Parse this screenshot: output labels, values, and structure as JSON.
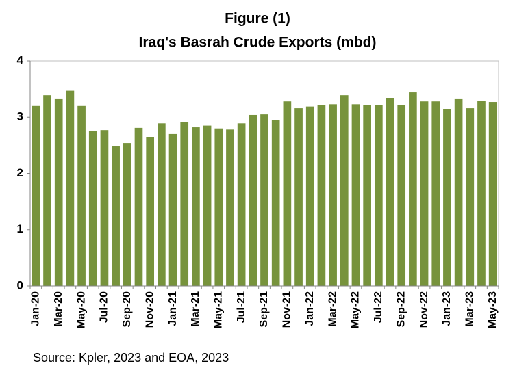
{
  "chart_data": {
    "type": "bar",
    "title": "Figure (1)",
    "subtitle": "Iraq's Basrah Crude Exports (mbd)",
    "source": "Source: Kpler, 2023 and EOA, 2023",
    "categories": [
      "Jan-20",
      null,
      "Mar-20",
      null,
      "May-20",
      null,
      "Jul-20",
      null,
      "Sep-20",
      null,
      "Nov-20",
      null,
      "Jan-21",
      null,
      "Mar-21",
      null,
      "May-21",
      null,
      "Jul-21",
      null,
      "Sep-21",
      null,
      "Nov-21",
      null,
      "Jan-22",
      null,
      "Mar-22",
      null,
      "May-22",
      null,
      "Jul-22",
      null,
      "Sep-22",
      null,
      "Nov-22",
      null,
      "Jan-23",
      null,
      "Mar-23",
      null,
      "May-23"
    ],
    "values": [
      3.2,
      3.39,
      3.32,
      3.47,
      3.2,
      2.76,
      2.77,
      2.48,
      2.54,
      2.81,
      2.65,
      2.89,
      2.7,
      2.91,
      2.82,
      2.85,
      2.8,
      2.78,
      2.89,
      3.04,
      3.05,
      2.95,
      3.28,
      3.16,
      3.19,
      3.22,
      3.23,
      3.39,
      3.23,
      3.22,
      3.21,
      3.34,
      3.21,
      3.44,
      3.28,
      3.28,
      3.14,
      3.32,
      3.16,
      3.29,
      3.27
    ],
    "color": "#77933c",
    "ylim": [
      0,
      4
    ],
    "yticks": [
      0,
      1,
      2,
      3,
      4
    ],
    "grid": false
  }
}
